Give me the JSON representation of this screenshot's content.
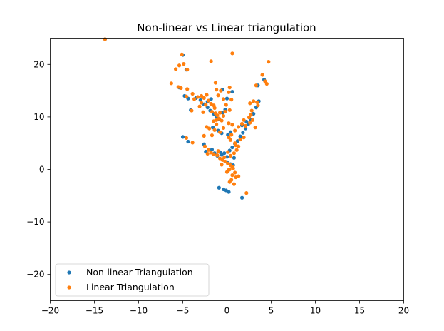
{
  "chart_data": {
    "type": "scatter",
    "title": "Non-linear vs Linear triangulation",
    "xlabel": "",
    "ylabel": "",
    "xlim": [
      -20,
      20
    ],
    "ylim": [
      -25,
      25
    ],
    "xticks": [
      -20,
      -15,
      -10,
      -5,
      0,
      5,
      10,
      15,
      20
    ],
    "yticks": [
      -20,
      -10,
      0,
      10,
      20
    ],
    "ytick_labels": [
      "−20",
      "−10",
      "0",
      "10",
      "20"
    ],
    "xtick_labels": [
      "−20",
      "−15",
      "−10",
      "−5",
      "0",
      "5",
      "10",
      "15",
      "20"
    ],
    "grid": false,
    "legend_position": "lower-left",
    "series": [
      {
        "name": "Non-linear Triangulation",
        "color": "#1f77b4",
        "points": [
          [
            -13.8,
            24.8
          ],
          [
            -5.0,
            21.8
          ],
          [
            -4.6,
            19.0
          ],
          [
            -5.4,
            15.6
          ],
          [
            -4.8,
            14.0
          ],
          [
            -4.4,
            13.5
          ],
          [
            -4.1,
            11.3
          ],
          [
            -3.5,
            13.6
          ],
          [
            -3.0,
            13.2
          ],
          [
            -2.6,
            12.4
          ],
          [
            -2.2,
            11.8
          ],
          [
            -1.9,
            11.2
          ],
          [
            -1.5,
            10.6
          ],
          [
            -1.2,
            10.1
          ],
          [
            -0.9,
            9.6
          ],
          [
            -0.5,
            10.8
          ],
          [
            -0.2,
            11.4
          ],
          [
            0.0,
            13.5
          ],
          [
            -1.6,
            8.0
          ],
          [
            -1.0,
            7.4
          ],
          [
            -0.6,
            6.9
          ],
          [
            -5.0,
            6.2
          ],
          [
            -4.4,
            5.3
          ],
          [
            -2.6,
            4.8
          ],
          [
            -2.4,
            3.4
          ],
          [
            -1.7,
            3.8
          ],
          [
            -1.4,
            3.1
          ],
          [
            -1.1,
            2.6
          ],
          [
            -0.8,
            3.3
          ],
          [
            -0.6,
            2.8
          ],
          [
            -0.3,
            3.1
          ],
          [
            0.0,
            2.4
          ],
          [
            0.3,
            3.6
          ],
          [
            0.6,
            4.2
          ],
          [
            0.9,
            4.9
          ],
          [
            1.2,
            5.4
          ],
          [
            1.5,
            6.3
          ],
          [
            1.8,
            7.0
          ],
          [
            2.1,
            7.8
          ],
          [
            2.4,
            8.6
          ],
          [
            2.7,
            9.5
          ],
          [
            3.0,
            10.6
          ],
          [
            3.3,
            11.8
          ],
          [
            3.6,
            13.0
          ],
          [
            1.7,
            8.4
          ],
          [
            2.2,
            9.1
          ],
          [
            0.4,
            7.1
          ],
          [
            0.1,
            6.6
          ],
          [
            -0.9,
            -3.5
          ],
          [
            -0.4,
            -3.8
          ],
          [
            -0.1,
            -4.0
          ],
          [
            0.2,
            -4.3
          ],
          [
            1.7,
            -5.4
          ],
          [
            0.0,
            1.4
          ],
          [
            0.4,
            1.0
          ],
          [
            0.7,
            0.8
          ],
          [
            -0.5,
            15.2
          ],
          [
            0.6,
            14.8
          ],
          [
            3.5,
            16.0
          ],
          [
            4.2,
            17.1
          ],
          [
            -2.2,
            12.9
          ],
          [
            -1.8,
            13.4
          ],
          [
            0.8,
            2.2
          ]
        ]
      },
      {
        "name": "Linear Triangulation",
        "color": "#ff7f0e",
        "points": [
          [
            -13.8,
            24.8
          ],
          [
            -5.1,
            21.9
          ],
          [
            -4.9,
            20.1
          ],
          [
            -5.4,
            19.8
          ],
          [
            -5.8,
            19.1
          ],
          [
            -4.5,
            19.0
          ],
          [
            -6.3,
            16.4
          ],
          [
            -5.5,
            15.7
          ],
          [
            -5.2,
            15.5
          ],
          [
            -4.5,
            15.3
          ],
          [
            -3.9,
            14.4
          ],
          [
            -4.6,
            13.9
          ],
          [
            -3.7,
            13.4
          ],
          [
            -3.3,
            13.8
          ],
          [
            -2.9,
            14.0
          ],
          [
            -2.6,
            13.6
          ],
          [
            -2.9,
            12.7
          ],
          [
            -2.4,
            12.3
          ],
          [
            -2.1,
            13.1
          ],
          [
            -1.8,
            12.5
          ],
          [
            -1.5,
            12.2
          ],
          [
            -1.4,
            11.7
          ],
          [
            -1.7,
            11.0
          ],
          [
            -1.3,
            10.7
          ],
          [
            -1.1,
            10.3
          ],
          [
            -0.8,
            10.8
          ],
          [
            -0.9,
            9.7
          ],
          [
            -1.2,
            9.4
          ],
          [
            -1.5,
            9.2
          ],
          [
            -0.6,
            9.3
          ],
          [
            -0.4,
            10.2
          ],
          [
            -0.2,
            11.0
          ],
          [
            0.3,
            11.3
          ],
          [
            0.5,
            13.3
          ],
          [
            -0.4,
            13.4
          ],
          [
            -1.3,
            16.5
          ],
          [
            -1.2,
            15.2
          ],
          [
            -1.8,
            20.6
          ],
          [
            0.6,
            22.1
          ],
          [
            4.7,
            20.5
          ],
          [
            4.0,
            18.0
          ],
          [
            4.3,
            16.8
          ],
          [
            4.5,
            16.3
          ],
          [
            3.3,
            16.0
          ],
          [
            0.3,
            15.6
          ],
          [
            0.2,
            14.7
          ],
          [
            -0.7,
            15.0
          ],
          [
            -2.3,
            14.2
          ],
          [
            -3.1,
            12.0
          ],
          [
            -4.0,
            11.2
          ],
          [
            -2.3,
            8.1
          ],
          [
            -2.0,
            7.8
          ],
          [
            -1.4,
            7.5
          ],
          [
            -0.8,
            7.1
          ],
          [
            -1.7,
            6.5
          ],
          [
            -2.6,
            6.4
          ],
          [
            -4.6,
            6.0
          ],
          [
            -3.9,
            5.1
          ],
          [
            -2.5,
            4.4
          ],
          [
            -2.1,
            3.7
          ],
          [
            -1.8,
            3.2
          ],
          [
            -1.5,
            2.9
          ],
          [
            -1.1,
            2.7
          ],
          [
            -0.8,
            2.1
          ],
          [
            -0.5,
            1.8
          ],
          [
            -0.2,
            1.5
          ],
          [
            0.1,
            1.1
          ],
          [
            0.4,
            0.8
          ],
          [
            0.6,
            0.5
          ],
          [
            0.7,
            0.2
          ],
          [
            0.2,
            -0.1
          ],
          [
            0.0,
            -0.5
          ],
          [
            0.9,
            -0.6
          ],
          [
            0.6,
            -1.1
          ],
          [
            1.0,
            -1.5
          ],
          [
            0.5,
            -2.0
          ],
          [
            0.3,
            -2.4
          ],
          [
            0.8,
            -2.8
          ],
          [
            2.2,
            -4.5
          ],
          [
            0.4,
            2.6
          ],
          [
            0.8,
            3.1
          ],
          [
            1.1,
            3.7
          ],
          [
            1.3,
            4.4
          ],
          [
            0.9,
            5.0
          ],
          [
            0.4,
            5.6
          ],
          [
            0.2,
            6.1
          ],
          [
            0.5,
            6.6
          ],
          [
            0.9,
            7.4
          ],
          [
            1.3,
            8.1
          ],
          [
            1.7,
            8.7
          ],
          [
            2.1,
            8.3
          ],
          [
            2.6,
            8.9
          ],
          [
            2.9,
            9.4
          ],
          [
            2.5,
            9.9
          ],
          [
            2.7,
            10.4
          ],
          [
            2.8,
            11.2
          ],
          [
            2.6,
            12.6
          ],
          [
            3.0,
            13.0
          ],
          [
            3.4,
            12.8
          ],
          [
            3.5,
            12.2
          ],
          [
            1.9,
            6.1
          ],
          [
            1.5,
            5.7
          ],
          [
            1.0,
            4.6
          ],
          [
            0.2,
            8.8
          ],
          [
            0.6,
            8.5
          ],
          [
            -0.4,
            7.9
          ],
          [
            0.1,
            3.3
          ],
          [
            -0.3,
            2.3
          ],
          [
            -1.0,
            3.5
          ],
          [
            -2.2,
            3.0
          ],
          [
            -0.6,
            0.9
          ],
          [
            0.3,
            0.0
          ],
          [
            1.3,
            -1.3
          ],
          [
            -0.1,
            12.3
          ],
          [
            -1.0,
            14.1
          ],
          [
            -2.7,
            10.9
          ],
          [
            -1.2,
            8.6
          ],
          [
            3.2,
            8.0
          ],
          [
            1.9,
            9.4
          ]
        ]
      }
    ]
  }
}
